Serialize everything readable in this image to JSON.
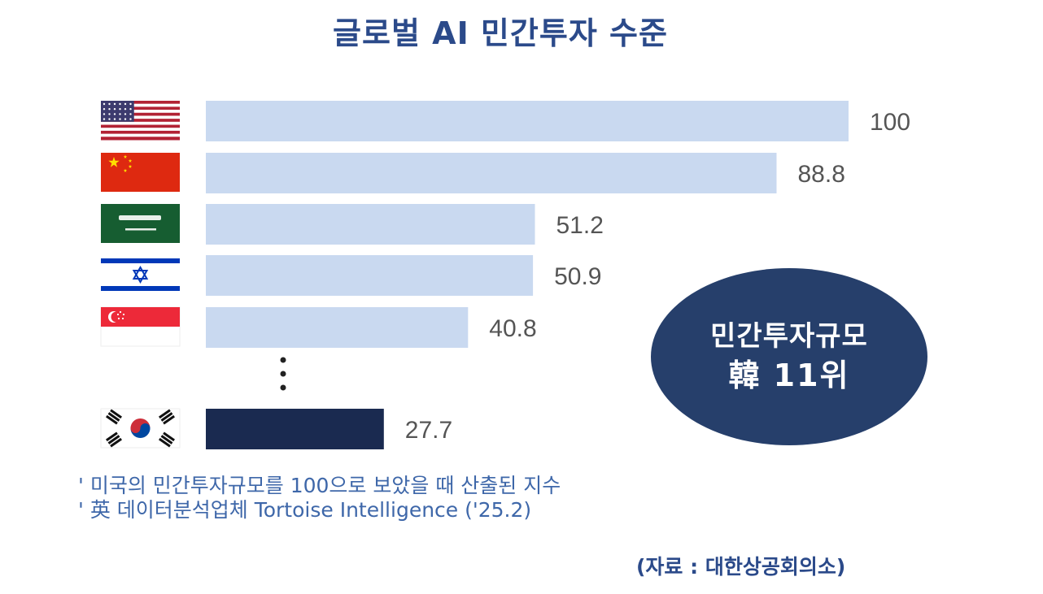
{
  "title": "글로벌 AI 민간투자 수준",
  "chart_data": {
    "type": "bar",
    "orientation": "horizontal",
    "categories": [
      "미국",
      "중국",
      "사우디아라비아",
      "이스라엘",
      "싱가포르",
      "한국"
    ],
    "flags": [
      "us-flag-icon",
      "cn-flag-icon",
      "sa-flag-icon",
      "il-flag-icon",
      "sg-flag-icon",
      "kr-flag-icon"
    ],
    "values": [
      100,
      88.8,
      51.2,
      50.9,
      40.8,
      27.7
    ],
    "value_labels": [
      "100",
      "88.8",
      "51.2",
      "50.9",
      "40.8",
      "27.7"
    ],
    "xlim": [
      0,
      100
    ],
    "ellipsis_before_last": true,
    "colors": {
      "bar": "#c9d9f0",
      "highlight": "#1a2a50"
    }
  },
  "badge": {
    "line1": "민간투자규모",
    "line2": "韓 11위"
  },
  "notes": [
    "' 미국의 민간투자규모를 100으로 보았을 때 산출된 지수",
    "' 英 데이터분석업체 Tortoise Intelligence ('25.2)"
  ],
  "source": "(자료 : 대한상공회의소)"
}
